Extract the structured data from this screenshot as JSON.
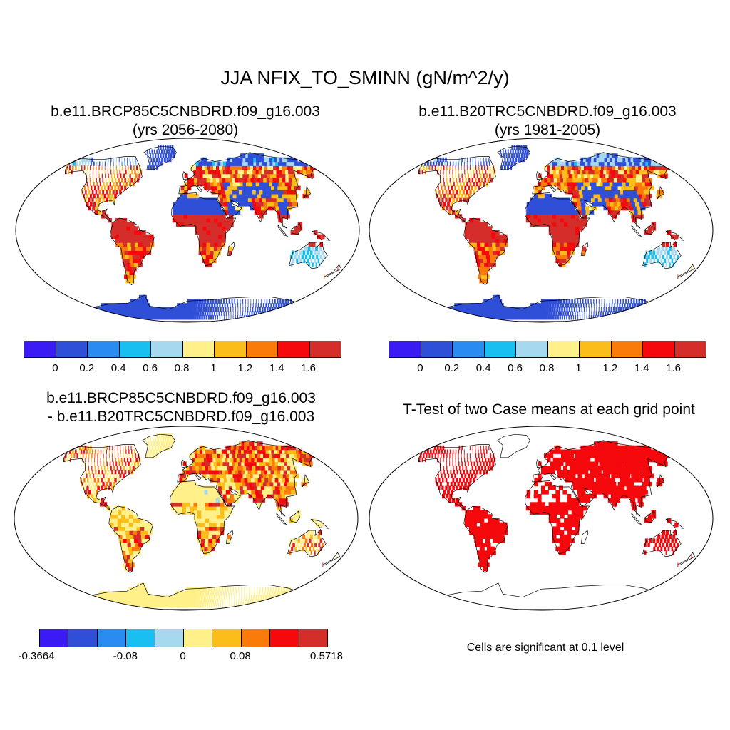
{
  "figure": {
    "title": "JJA NFIX_TO_SMINN (gN/m^2/y)"
  },
  "panels": [
    {
      "id": "future",
      "title_line1": "b.e11.BRCP85C5CNBDRD.f09_g16.003",
      "title_line2": "(yrs 2056-2080)"
    },
    {
      "id": "historical",
      "title_line1": "b.e11.B20TRC5CNBDRD.f09_g16.003",
      "title_line2": "(yrs 1981-2005)"
    },
    {
      "id": "difference",
      "title_line1": "b.e11.BRCP85C5CNBDRD.f09_g16.003",
      "title_line2": "- b.e11.B20TRC5CNBDRD.f09_g16.003"
    },
    {
      "id": "ttest",
      "title_line1": "T-Test of two Case means at each grid point",
      "note": "Cells are significant at 0.1 level"
    }
  ],
  "colorbars": {
    "absolute": {
      "colors": [
        "#3a1bf4",
        "#2f4fd8",
        "#2a8cf0",
        "#19bff0",
        "#a6d8f0",
        "#fff08a",
        "#fbbd19",
        "#fa7a0a",
        "#f5090c",
        "#d42d2a"
      ],
      "ticks": [
        "0",
        "0.2",
        "0.4",
        "0.6",
        "0.8",
        "1",
        "1.2",
        "1.4",
        "1.6"
      ]
    },
    "difference": {
      "colors": [
        "#3a1bf4",
        "#2f4fd8",
        "#2a8cf0",
        "#19bff0",
        "#a6d8f0",
        "#fff08a",
        "#fbbd19",
        "#fa7a0a",
        "#f5090c",
        "#d42d2a"
      ],
      "ticks": [
        "-0.3664",
        "-0.08",
        "0",
        "0.08",
        "0.5718"
      ]
    }
  },
  "map_palette": {
    "ocean": "#ffffff",
    "significant": "#f5090c",
    "coastline": "#000000"
  }
}
